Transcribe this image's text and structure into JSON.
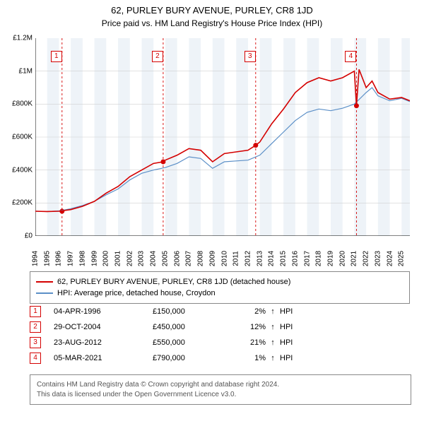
{
  "title": "62, PURLEY BURY AVENUE, PURLEY, CR8 1JD",
  "subtitle": "Price paid vs. HM Land Registry's House Price Index (HPI)",
  "chart": {
    "type": "line",
    "background_color": "#ffffff",
    "grid_color": "#d0d0d0",
    "band_color": "#eef3f8",
    "axis_color": "#000000",
    "ylim": [
      0,
      1200000
    ],
    "ytick_step": 200000,
    "ytick_labels": [
      "£0",
      "£200K",
      "£400K",
      "£600K",
      "£800K",
      "£1M",
      "£1.2M"
    ],
    "x_years": [
      1994,
      1995,
      1996,
      1997,
      1998,
      1999,
      2000,
      2001,
      2002,
      2003,
      2004,
      2005,
      2006,
      2007,
      2008,
      2009,
      2010,
      2011,
      2012,
      2013,
      2014,
      2015,
      2016,
      2017,
      2018,
      2019,
      2020,
      2021,
      2022,
      2023,
      2024,
      2025
    ],
    "xlim": [
      1994,
      2025.7
    ],
    "series": [
      {
        "name": "property",
        "label": "62, PURLEY BURY AVENUE, PURLEY, CR8 1JD (detached house)",
        "color": "#d40000",
        "line_width": 1.6,
        "points": [
          [
            1994,
            150000
          ],
          [
            1995,
            148000
          ],
          [
            1996,
            150000
          ],
          [
            1997,
            160000
          ],
          [
            1998,
            180000
          ],
          [
            1999,
            210000
          ],
          [
            2000,
            260000
          ],
          [
            2001,
            300000
          ],
          [
            2002,
            360000
          ],
          [
            2003,
            400000
          ],
          [
            2004,
            440000
          ],
          [
            2004.82,
            450000
          ],
          [
            2005,
            460000
          ],
          [
            2006,
            490000
          ],
          [
            2007,
            530000
          ],
          [
            2008,
            520000
          ],
          [
            2009,
            450000
          ],
          [
            2010,
            500000
          ],
          [
            2011,
            510000
          ],
          [
            2012,
            520000
          ],
          [
            2012.65,
            550000
          ],
          [
            2013,
            570000
          ],
          [
            2014,
            680000
          ],
          [
            2015,
            770000
          ],
          [
            2016,
            870000
          ],
          [
            2017,
            930000
          ],
          [
            2018,
            960000
          ],
          [
            2019,
            940000
          ],
          [
            2020,
            960000
          ],
          [
            2021,
            1000000
          ],
          [
            2021.18,
            790000
          ],
          [
            2021.4,
            1010000
          ],
          [
            2022,
            900000
          ],
          [
            2022.5,
            940000
          ],
          [
            2023,
            870000
          ],
          [
            2024,
            830000
          ],
          [
            2025,
            840000
          ],
          [
            2025.7,
            820000
          ]
        ]
      },
      {
        "name": "hpi",
        "label": "HPI: Average price, detached house, Croydon",
        "color": "#5b8fc7",
        "line_width": 1.2,
        "points": [
          [
            1994,
            150000
          ],
          [
            1995,
            148000
          ],
          [
            1996,
            152000
          ],
          [
            1997,
            165000
          ],
          [
            1998,
            185000
          ],
          [
            1999,
            210000
          ],
          [
            2000,
            250000
          ],
          [
            2001,
            285000
          ],
          [
            2002,
            340000
          ],
          [
            2003,
            380000
          ],
          [
            2004,
            400000
          ],
          [
            2005,
            415000
          ],
          [
            2006,
            440000
          ],
          [
            2007,
            480000
          ],
          [
            2008,
            470000
          ],
          [
            2009,
            410000
          ],
          [
            2010,
            450000
          ],
          [
            2011,
            455000
          ],
          [
            2012,
            460000
          ],
          [
            2013,
            490000
          ],
          [
            2014,
            560000
          ],
          [
            2015,
            630000
          ],
          [
            2016,
            700000
          ],
          [
            2017,
            750000
          ],
          [
            2018,
            770000
          ],
          [
            2019,
            760000
          ],
          [
            2020,
            775000
          ],
          [
            2021,
            800000
          ],
          [
            2022,
            870000
          ],
          [
            2022.5,
            900000
          ],
          [
            2023,
            850000
          ],
          [
            2024,
            820000
          ],
          [
            2025,
            835000
          ],
          [
            2025.7,
            815000
          ]
        ]
      }
    ],
    "event_markers": [
      {
        "n": "1",
        "year": 1996.26,
        "price": 150000
      },
      {
        "n": "2",
        "year": 2004.82,
        "price": 450000
      },
      {
        "n": "3",
        "year": 2012.65,
        "price": 550000
      },
      {
        "n": "4",
        "year": 2021.18,
        "price": 790000
      }
    ],
    "event_line_color": "#d40000",
    "event_line_dash": "3,3",
    "event_dot_color": "#d40000",
    "event_dot_radius": 3.5
  },
  "legend": {
    "items": [
      {
        "swatch": "#d40000",
        "label": "62, PURLEY BURY AVENUE, PURLEY, CR8 1JD (detached house)"
      },
      {
        "swatch": "#5b8fc7",
        "label": "HPI: Average price, detached house, Croydon"
      }
    ]
  },
  "events": [
    {
      "n": "1",
      "date": "04-APR-1996",
      "price": "£150,000",
      "pct": "2%",
      "dir": "↑",
      "suffix": "HPI"
    },
    {
      "n": "2",
      "date": "29-OCT-2004",
      "price": "£450,000",
      "pct": "12%",
      "dir": "↑",
      "suffix": "HPI"
    },
    {
      "n": "3",
      "date": "23-AUG-2012",
      "price": "£550,000",
      "pct": "21%",
      "dir": "↑",
      "suffix": "HPI"
    },
    {
      "n": "4",
      "date": "05-MAR-2021",
      "price": "£790,000",
      "pct": "1%",
      "dir": "↑",
      "suffix": "HPI"
    }
  ],
  "footer": {
    "line1": "Contains HM Land Registry data © Crown copyright and database right 2024.",
    "line2": "This data is licensed under the Open Government Licence v3.0."
  }
}
